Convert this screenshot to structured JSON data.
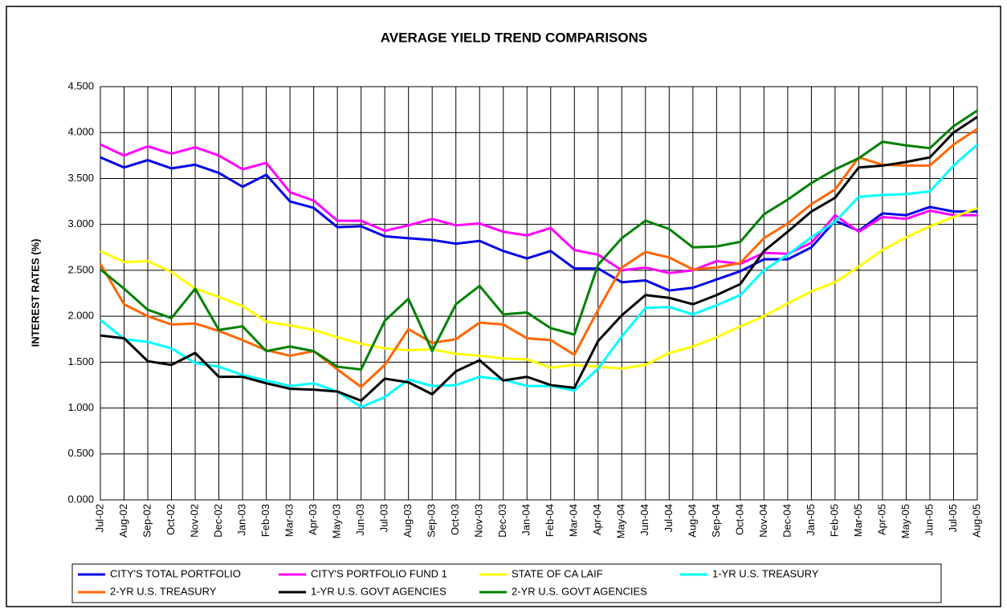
{
  "chart_data": {
    "type": "line",
    "title": "AVERAGE YIELD TREND COMPARISONS",
    "y_label": "INTEREST RATES (%)",
    "categories": [
      "Jul-02",
      "Aug-02",
      "Sep-02",
      "Oct-02",
      "Nov-02",
      "Dec-02",
      "Jan-03",
      "Feb-03",
      "Mar-03",
      "Apr-03",
      "May-03",
      "Jun-03",
      "Jul-03",
      "Aug-03",
      "Sep-03",
      "Oct-03",
      "Nov-03",
      "Dec-03",
      "Jan-04",
      "Feb-04",
      "Mar-04",
      "Apr-04",
      "May-04",
      "Jun-04",
      "Jul-04",
      "Aug-04",
      "Sep-04",
      "Oct-04",
      "Nov-04",
      "Dec-04",
      "Jan-05",
      "Feb-05",
      "Mar-05",
      "Apr-05",
      "May-05",
      "Jun-05",
      "Jul-05",
      "Aug-05"
    ],
    "series": [
      {
        "name": "CITY'S TOTAL PORTFOLIO",
        "color": "#0000e6",
        "values": [
          3.73,
          3.62,
          3.7,
          3.61,
          3.65,
          3.56,
          3.41,
          3.54,
          3.25,
          3.18,
          2.97,
          2.98,
          2.87,
          2.85,
          2.83,
          2.79,
          2.82,
          2.71,
          2.63,
          2.71,
          2.52,
          2.52,
          2.37,
          2.39,
          2.28,
          2.31,
          2.4,
          2.49,
          2.62,
          2.62,
          2.75,
          3.04,
          2.93,
          3.12,
          3.1,
          3.19,
          3.14,
          3.14
        ]
      },
      {
        "name": "CITY'S PORTFOLIO FUND 1",
        "color": "#ff00ff",
        "values": [
          3.87,
          3.75,
          3.85,
          3.77,
          3.84,
          3.75,
          3.6,
          3.67,
          3.35,
          3.26,
          3.04,
          3.04,
          2.93,
          2.99,
          3.06,
          2.99,
          3.01,
          2.92,
          2.88,
          2.96,
          2.72,
          2.67,
          2.5,
          2.53,
          2.47,
          2.5,
          2.6,
          2.57,
          2.69,
          2.68,
          2.8,
          3.1,
          2.92,
          3.08,
          3.06,
          3.15,
          3.1,
          3.1
        ]
      },
      {
        "name": "STATE OF CA LAIF",
        "color": "#ffff00",
        "values": [
          2.71,
          2.59,
          2.6,
          2.48,
          2.3,
          2.21,
          2.11,
          1.94,
          1.9,
          1.85,
          1.77,
          1.7,
          1.65,
          1.63,
          1.64,
          1.59,
          1.57,
          1.54,
          1.53,
          1.44,
          1.47,
          1.45,
          1.43,
          1.47,
          1.6,
          1.67,
          1.77,
          1.89,
          2.0,
          2.14,
          2.27,
          2.37,
          2.54,
          2.72,
          2.86,
          2.98,
          3.08,
          3.18
        ]
      },
      {
        "name": "1-YR U.S. TREASURY",
        "color": "#00ffff",
        "values": [
          1.96,
          1.75,
          1.72,
          1.65,
          1.49,
          1.45,
          1.36,
          1.3,
          1.24,
          1.27,
          1.18,
          1.01,
          1.12,
          1.31,
          1.24,
          1.25,
          1.34,
          1.31,
          1.24,
          1.24,
          1.19,
          1.43,
          1.78,
          2.09,
          2.1,
          2.02,
          2.12,
          2.23,
          2.5,
          2.67,
          2.86,
          3.03,
          3.3,
          3.32,
          3.33,
          3.36,
          3.64,
          3.87
        ]
      },
      {
        "name": "2-YR U.S. TREASURY",
        "color": "#ff6600",
        "values": [
          2.57,
          2.13,
          2.0,
          1.91,
          1.92,
          1.84,
          1.74,
          1.63,
          1.57,
          1.62,
          1.42,
          1.23,
          1.47,
          1.86,
          1.71,
          1.75,
          1.93,
          1.91,
          1.76,
          1.74,
          1.58,
          2.07,
          2.53,
          2.7,
          2.64,
          2.51,
          2.53,
          2.58,
          2.85,
          3.01,
          3.22,
          3.38,
          3.73,
          3.65,
          3.64,
          3.64,
          3.87,
          4.04
        ]
      },
      {
        "name": "1-YR U.S. GOVT AGENCIES",
        "color": "#000000",
        "values": [
          1.79,
          1.76,
          1.51,
          1.47,
          1.6,
          1.34,
          1.34,
          1.27,
          1.21,
          1.2,
          1.18,
          1.08,
          1.32,
          1.28,
          1.15,
          1.4,
          1.52,
          1.3,
          1.34,
          1.25,
          1.22,
          1.73,
          2.01,
          2.23,
          2.2,
          2.13,
          2.23,
          2.35,
          2.71,
          2.92,
          3.14,
          3.29,
          3.62,
          3.64,
          3.68,
          3.73,
          4.0,
          4.17
        ]
      },
      {
        "name": "2-YR U.S. GOVT AGENCIES",
        "color": "#008000",
        "values": [
          2.51,
          2.3,
          2.07,
          1.98,
          2.3,
          1.85,
          1.89,
          1.62,
          1.67,
          1.62,
          1.45,
          1.42,
          1.95,
          2.19,
          1.62,
          2.13,
          2.33,
          2.02,
          2.04,
          1.87,
          1.8,
          2.56,
          2.85,
          3.04,
          2.95,
          2.75,
          2.76,
          2.81,
          3.11,
          3.27,
          3.45,
          3.6,
          3.72,
          3.9,
          3.86,
          3.83,
          4.07,
          4.24
        ]
      }
    ],
    "ylim": [
      0,
      4.5
    ],
    "yticks": [
      {
        "value": 0,
        "label": "0.000"
      },
      {
        "value": 0.5,
        "label": "0.500"
      },
      {
        "value": 1,
        "label": "1.000"
      },
      {
        "value": 1.5,
        "label": "1.500"
      },
      {
        "value": 2,
        "label": "2.000"
      },
      {
        "value": 2.5,
        "label": "2.500"
      },
      {
        "value": 3,
        "label": "3.000"
      },
      {
        "value": 3.5,
        "label": "3.500"
      },
      {
        "value": 4,
        "label": "4.000"
      },
      {
        "value": 4.5,
        "label": "4.500"
      }
    ],
    "grid": true,
    "legend": "bottom"
  }
}
